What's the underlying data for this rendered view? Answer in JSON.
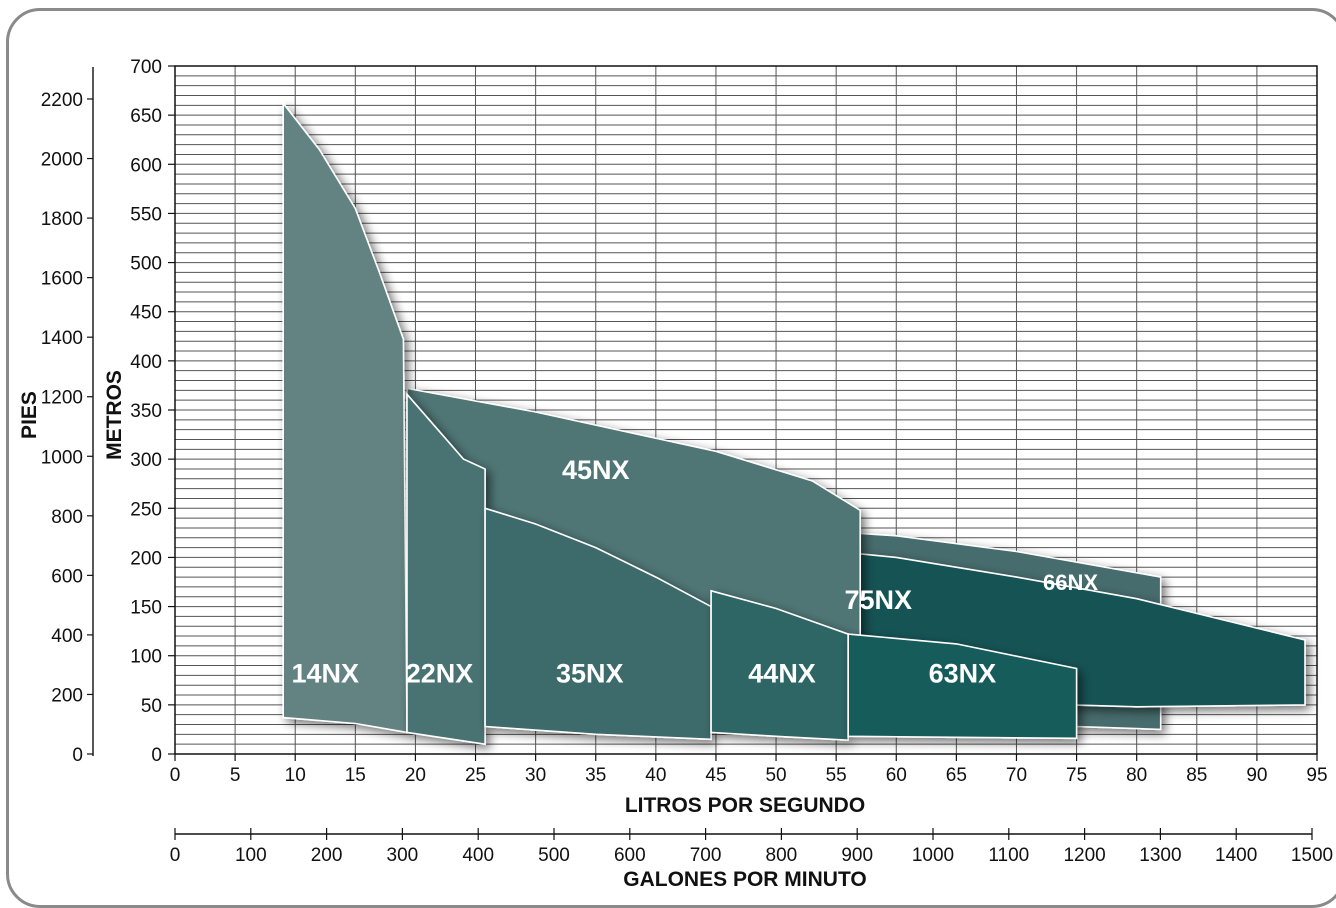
{
  "chart_data": {
    "type": "area",
    "title": "",
    "xlabel": "LITROS POR SEGUNDO",
    "x2label": "GALONES POR MINUTO",
    "ylabel": "METROS",
    "y2label": "PIES",
    "xlim": [
      0,
      95
    ],
    "ylim": [
      0,
      700
    ],
    "x_ticks": [
      "0",
      "5",
      "10",
      "15",
      "20",
      "25",
      "30",
      "35",
      "40",
      "45",
      "50",
      "55",
      "60",
      "65",
      "70",
      "75",
      "80",
      "85",
      "90",
      "95"
    ],
    "y_ticks": [
      "0",
      "50",
      "100",
      "150",
      "200",
      "250",
      "300",
      "350",
      "400",
      "450",
      "500",
      "550",
      "600",
      "650",
      "700"
    ],
    "gpm_ticks": [
      "0",
      "100",
      "200",
      "300",
      "400",
      "500",
      "600",
      "700",
      "800",
      "900",
      "1000",
      "1100",
      "1200",
      "1300",
      "1400",
      "1500"
    ],
    "feet_ticks": [
      "0",
      "200",
      "400",
      "600",
      "800",
      "1000",
      "1200",
      "1400",
      "1600",
      "1800",
      "2000",
      "2200"
    ],
    "grid": true,
    "series": [
      {
        "name": "66NX",
        "color": "#466c6d",
        "label_at": [
          74.5,
          173
        ],
        "polygon": [
          [
            29,
            236
          ],
          [
            45,
            234
          ],
          [
            60,
            222
          ],
          [
            70,
            206
          ],
          [
            82,
            180
          ],
          [
            82,
            25
          ],
          [
            70,
            30
          ],
          [
            60,
            37
          ],
          [
            45,
            47
          ],
          [
            29,
            57
          ]
        ]
      },
      {
        "name": "75NX",
        "color": "#135254",
        "label_at": [
          58.5,
          155
        ],
        "polygon": [
          [
            33,
            219
          ],
          [
            45,
            218
          ],
          [
            60,
            200
          ],
          [
            70,
            180
          ],
          [
            80,
            158
          ],
          [
            94,
            116
          ],
          [
            94,
            50
          ],
          [
            80,
            48
          ],
          [
            60,
            55
          ],
          [
            45,
            60
          ],
          [
            33,
            63
          ]
        ]
      },
      {
        "name": "45NX",
        "color": "#4f7474",
        "label_at": [
          35,
          287
        ],
        "polygon": [
          [
            19.3,
            372
          ],
          [
            30,
            348
          ],
          [
            45,
            308
          ],
          [
            53,
            278
          ],
          [
            57,
            248
          ],
          [
            57,
            70
          ],
          [
            45,
            75
          ],
          [
            35,
            90
          ],
          [
            26,
            110
          ],
          [
            19.3,
            120
          ]
        ]
      },
      {
        "name": "14NX",
        "color": "#648383",
        "label_at": [
          12.5,
          80
        ],
        "polygon": [
          [
            9,
            662
          ],
          [
            12,
            615
          ],
          [
            15,
            555
          ],
          [
            17,
            490
          ],
          [
            19,
            422
          ],
          [
            19.3,
            22
          ],
          [
            15,
            31
          ],
          [
            9,
            37
          ]
        ]
      },
      {
        "name": "22NX",
        "color": "#4a7272",
        "label_at": [
          22,
          80
        ],
        "polygon": [
          [
            19.3,
            366
          ],
          [
            21.5,
            335
          ],
          [
            24,
            300
          ],
          [
            25.8,
            290
          ],
          [
            25.8,
            10
          ],
          [
            19.3,
            22
          ]
        ]
      },
      {
        "name": "35NX",
        "color": "#3e6b6b",
        "label_at": [
          34.5,
          80
        ],
        "polygon": [
          [
            25.8,
            250
          ],
          [
            30,
            234
          ],
          [
            35,
            210
          ],
          [
            40,
            180
          ],
          [
            44.6,
            150
          ],
          [
            44.6,
            15
          ],
          [
            35,
            20
          ],
          [
            25.8,
            28
          ]
        ]
      },
      {
        "name": "44NX",
        "color": "#2f6565",
        "label_at": [
          50.5,
          80
        ],
        "polygon": [
          [
            44.6,
            166
          ],
          [
            50,
            148
          ],
          [
            56,
            122
          ],
          [
            56,
            14
          ],
          [
            50,
            18
          ],
          [
            44.6,
            22
          ]
        ]
      },
      {
        "name": "63NX",
        "color": "#165b5a",
        "label_at": [
          65.5,
          80
        ],
        "polygon": [
          [
            56,
            122
          ],
          [
            65,
            112
          ],
          [
            75,
            87
          ],
          [
            75,
            16
          ],
          [
            65,
            17
          ],
          [
            56,
            18
          ]
        ]
      }
    ]
  }
}
